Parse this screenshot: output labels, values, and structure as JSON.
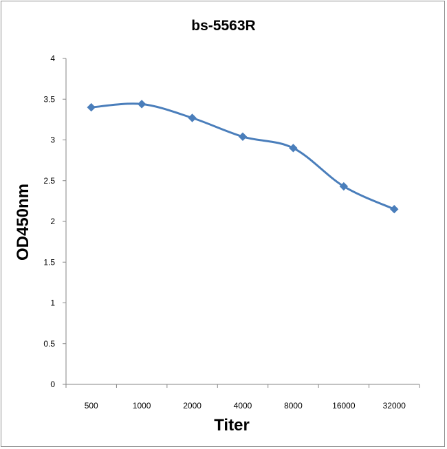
{
  "chart_data": {
    "type": "line",
    "title": "bs-5563R",
    "xlabel": "Titer",
    "ylabel": "OD450nm",
    "categories": [
      "500",
      "1000",
      "2000",
      "4000",
      "8000",
      "16000",
      "32000"
    ],
    "series": [
      {
        "values": [
          3.4,
          3.44,
          3.27,
          3.04,
          2.9,
          2.43,
          2.15
        ]
      }
    ],
    "ylim": [
      0,
      4
    ],
    "yticks": [
      "0",
      "0.5",
      "1",
      "1.5",
      "2",
      "2.5",
      "3",
      "3.5",
      "4"
    ],
    "grid": false,
    "legend": "none",
    "series_color": "#4a7ebb"
  }
}
